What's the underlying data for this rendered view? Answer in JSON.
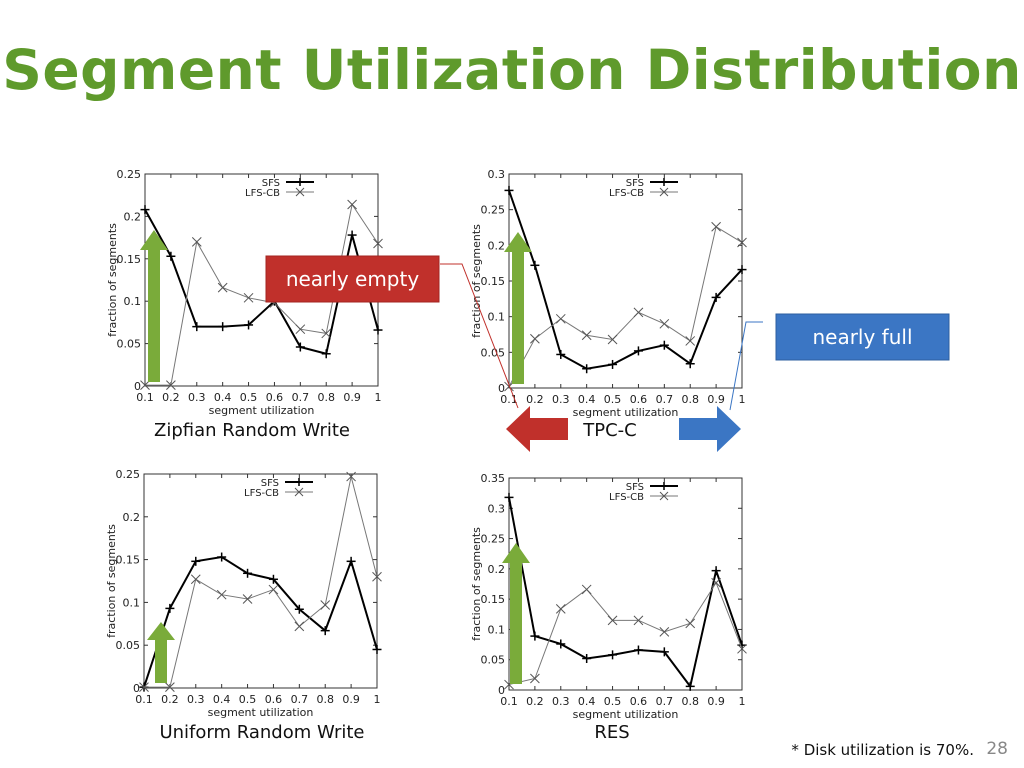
{
  "slide": {
    "title": "Segment Utilization Distribution",
    "footnote": "* Disk utilization is 70%.",
    "page_number": "28",
    "callouts": {
      "empty": "nearly empty",
      "full": "nearly full"
    },
    "colors": {
      "title": "#5f9a2c",
      "red": "#c0302b",
      "blue": "#3b76c4",
      "green": "#7aab3a"
    }
  },
  "chart_data": [
    {
      "type": "line",
      "caption": "Zipfian Random Write",
      "xlabel": "segment utilization",
      "ylabel": "fraction of segments",
      "x": [
        0.1,
        0.2,
        0.3,
        0.4,
        0.5,
        0.6,
        0.7,
        0.8,
        0.9,
        1
      ],
      "xticks": [
        "0.1",
        "0.2",
        "0.3",
        "0.4",
        "0.5",
        "0.6",
        "0.7",
        "0.8",
        "0.9",
        "1"
      ],
      "ylim": [
        0,
        0.25
      ],
      "yticks": [
        "0",
        "0.05",
        "0.1",
        "0.15",
        "0.2",
        "0.25"
      ],
      "legend": "top-right",
      "series": [
        {
          "name": "SFS",
          "values": [
            0.208,
            0.153,
            0.07,
            0.07,
            0.072,
            0.1,
            0.046,
            0.038,
            0.178,
            0.066
          ]
        },
        {
          "name": "LFS-CB",
          "values": [
            0.001,
            0.001,
            0.17,
            0.116,
            0.104,
            0.098,
            0.067,
            0.062,
            0.214,
            0.168
          ]
        }
      ]
    },
    {
      "type": "line",
      "caption": "TPC-C",
      "xlabel": "segment utilization",
      "ylabel": "fraction of segments",
      "x": [
        0.1,
        0.2,
        0.3,
        0.4,
        0.5,
        0.6,
        0.7,
        0.8,
        0.9,
        1
      ],
      "xticks": [
        "0.1",
        "0.2",
        "0.3",
        "0.4",
        "0.5",
        "0.6",
        "0.7",
        "0.8",
        "0.9",
        "1"
      ],
      "ylim": [
        0,
        0.3
      ],
      "yticks": [
        "0",
        "0.05",
        "0.1",
        "0.15",
        "0.2",
        "0.25",
        "0.3"
      ],
      "legend": "top-right",
      "series": [
        {
          "name": "SFS",
          "values": [
            0.277,
            0.172,
            0.047,
            0.027,
            0.033,
            0.052,
            0.06,
            0.034,
            0.127,
            0.166
          ]
        },
        {
          "name": "LFS-CB",
          "values": [
            0.002,
            0.069,
            0.097,
            0.074,
            0.068,
            0.106,
            0.09,
            0.066,
            0.226,
            0.204
          ]
        }
      ]
    },
    {
      "type": "line",
      "caption": "Uniform Random Write",
      "xlabel": "segment utilization",
      "ylabel": "fraction of segments",
      "x": [
        0.1,
        0.2,
        0.3,
        0.4,
        0.5,
        0.6,
        0.7,
        0.8,
        0.9,
        1
      ],
      "xticks": [
        "0.1",
        "0.2",
        "0.3",
        "0.4",
        "0.5",
        "0.6",
        "0.7",
        "0.8",
        "0.9",
        "1"
      ],
      "ylim": [
        0,
        0.25
      ],
      "yticks": [
        "0",
        "0.05",
        "0.1",
        "0.15",
        "0.2",
        "0.25"
      ],
      "legend": "top-right",
      "series": [
        {
          "name": "SFS",
          "values": [
            0.001,
            0.093,
            0.148,
            0.153,
            0.134,
            0.127,
            0.092,
            0.067,
            0.148,
            0.045
          ]
        },
        {
          "name": "LFS-CB",
          "values": [
            0.001,
            0.001,
            0.127,
            0.109,
            0.104,
            0.115,
            0.072,
            0.097,
            0.247,
            0.13
          ]
        }
      ]
    },
    {
      "type": "line",
      "caption": "RES",
      "xlabel": "segment utilization",
      "ylabel": "fraction of segments",
      "x": [
        0.1,
        0.2,
        0.3,
        0.4,
        0.5,
        0.6,
        0.7,
        0.8,
        0.9,
        1
      ],
      "xticks": [
        "0.1",
        "0.2",
        "0.3",
        "0.4",
        "0.5",
        "0.6",
        "0.7",
        "0.8",
        "0.9",
        "1"
      ],
      "ylim": [
        0,
        0.35
      ],
      "yticks": [
        "0",
        "0.05",
        "0.1",
        "0.15",
        "0.2",
        "0.25",
        "0.3",
        "0.35"
      ],
      "legend": "top-right",
      "series": [
        {
          "name": "SFS",
          "values": [
            0.318,
            0.089,
            0.076,
            0.052,
            0.058,
            0.066,
            0.063,
            0.006,
            0.197,
            0.074
          ]
        },
        {
          "name": "LFS-CB",
          "values": [
            0.009,
            0.019,
            0.134,
            0.166,
            0.115,
            0.115,
            0.096,
            0.11,
            0.177,
            0.068
          ]
        }
      ]
    }
  ]
}
